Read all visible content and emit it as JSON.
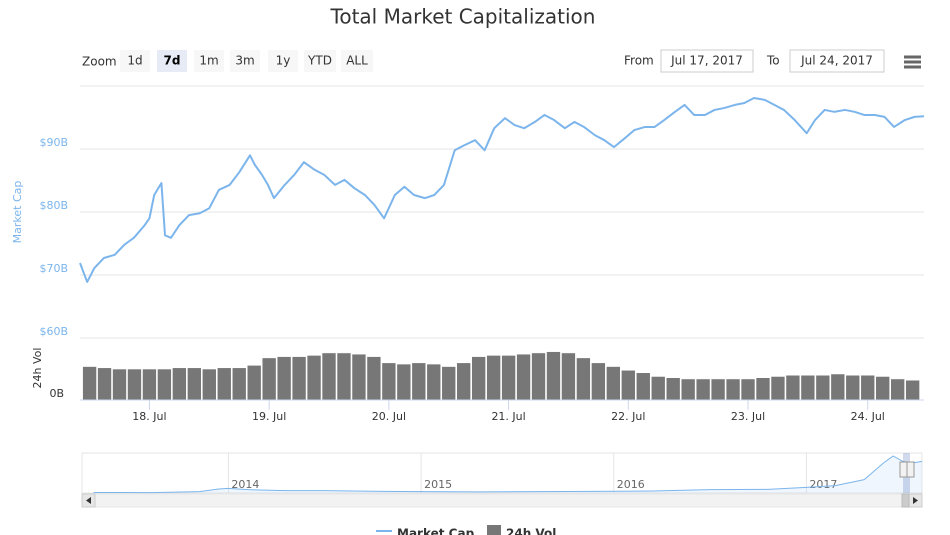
{
  "chart_data": {
    "type": "line",
    "title": "Total Market Capitalization",
    "ylabel": "Market Cap",
    "y2label": "24h Vol",
    "range_selector": {
      "zoom_label": "Zoom",
      "buttons": [
        "1d",
        "7d",
        "1m",
        "3m",
        "1y",
        "YTD",
        "ALL"
      ],
      "selected": 1,
      "from_label": "From",
      "from_value": "Jul 17, 2017",
      "to_label": "To",
      "to_value": "Jul 24, 2017"
    },
    "xlim": [
      17.42,
      24.47
    ],
    "xticks": [
      {
        "value": 18,
        "label": "18. Jul"
      },
      {
        "value": 19,
        "label": "19. Jul"
      },
      {
        "value": 20,
        "label": "20. Jul"
      },
      {
        "value": 21,
        "label": "21. Jul"
      },
      {
        "value": 22,
        "label": "22. Jul"
      },
      {
        "value": 23,
        "label": "23. Jul"
      },
      {
        "value": 24,
        "label": "24. Jul"
      }
    ],
    "ylim": [
      60,
      100
    ],
    "yticks": [
      {
        "value": 60,
        "label": "$60B"
      },
      {
        "value": 70,
        "label": "$70B"
      },
      {
        "value": 80,
        "label": "$80B"
      },
      {
        "value": 90,
        "label": "$90B"
      }
    ],
    "y2lim": [
      0,
      5
    ],
    "y2ticks": [
      {
        "value": 0,
        "label": "0B"
      }
    ],
    "grid": true,
    "series": [
      {
        "name": "Market Cap",
        "color": "#7cb5ec",
        "axis": "y",
        "x": [
          17.42,
          17.48,
          17.54,
          17.62,
          17.71,
          17.79,
          17.87,
          17.96,
          18.0,
          18.04,
          18.1,
          18.13,
          18.18,
          18.25,
          18.33,
          18.42,
          18.5,
          18.58,
          18.67,
          18.75,
          18.84,
          18.88,
          18.94,
          18.99,
          19.04,
          19.13,
          19.21,
          19.29,
          19.38,
          19.46,
          19.55,
          19.63,
          19.71,
          19.8,
          19.88,
          19.96,
          20.05,
          20.13,
          20.21,
          20.3,
          20.38,
          20.46,
          20.55,
          20.63,
          20.72,
          20.8,
          20.88,
          20.97,
          21.05,
          21.13,
          21.22,
          21.3,
          21.38,
          21.47,
          21.55,
          21.63,
          21.72,
          21.8,
          21.88,
          21.97,
          22.05,
          22.14,
          22.22,
          22.3,
          22.39,
          22.47,
          22.55,
          22.64,
          22.72,
          22.8,
          22.89,
          22.97,
          23.05,
          23.14,
          23.22,
          23.3,
          23.39,
          23.49,
          23.56,
          23.64,
          23.72,
          23.81,
          23.89,
          23.97,
          24.06,
          24.14,
          24.22,
          24.31,
          24.39,
          24.47
        ],
        "values": [
          71.9,
          68.9,
          71.1,
          72.7,
          73.2,
          74.8,
          75.9,
          77.9,
          79.0,
          82.7,
          84.6,
          76.3,
          75.9,
          77.9,
          79.5,
          79.8,
          80.6,
          83.5,
          84.3,
          86.3,
          89.0,
          87.5,
          85.9,
          84.3,
          82.2,
          84.3,
          85.9,
          87.9,
          86.7,
          85.9,
          84.3,
          85.1,
          83.8,
          82.7,
          81.1,
          79.0,
          82.7,
          84.0,
          82.7,
          82.2,
          82.7,
          84.3,
          89.8,
          90.6,
          91.4,
          89.8,
          93.3,
          94.9,
          93.8,
          93.3,
          94.3,
          95.4,
          94.6,
          93.3,
          94.3,
          93.5,
          92.2,
          91.4,
          90.3,
          91.7,
          93.0,
          93.5,
          93.5,
          94.6,
          95.9,
          97.0,
          95.4,
          95.4,
          96.2,
          96.5,
          97.0,
          97.3,
          98.1,
          97.8,
          97.0,
          96.2,
          94.6,
          92.5,
          94.6,
          96.2,
          95.9,
          96.2,
          95.9,
          95.4,
          95.4,
          95.1,
          93.5,
          94.6,
          95.1,
          95.2
        ]
      },
      {
        "name": "24h Vol",
        "color": "#777777",
        "axis": "y2",
        "x": [
          17.5,
          17.625,
          17.75,
          17.875,
          18.0,
          18.125,
          18.25,
          18.375,
          18.5,
          18.625,
          18.75,
          18.875,
          19.0,
          19.125,
          19.25,
          19.375,
          19.5,
          19.625,
          19.75,
          19.875,
          20.0,
          20.125,
          20.25,
          20.375,
          20.5,
          20.625,
          20.75,
          20.875,
          21.0,
          21.125,
          21.25,
          21.375,
          21.5,
          21.625,
          21.75,
          21.875,
          22.0,
          22.125,
          22.25,
          22.375,
          22.5,
          22.625,
          22.75,
          22.875,
          23.0,
          23.125,
          23.25,
          23.375,
          23.5,
          23.625,
          23.75,
          23.875,
          24.0,
          24.125,
          24.25,
          24.375
        ],
        "values": [
          2.7,
          2.6,
          2.5,
          2.5,
          2.5,
          2.5,
          2.6,
          2.6,
          2.5,
          2.6,
          2.6,
          2.8,
          3.4,
          3.5,
          3.5,
          3.6,
          3.8,
          3.8,
          3.7,
          3.5,
          3.0,
          2.9,
          3.0,
          2.9,
          2.7,
          3.0,
          3.5,
          3.6,
          3.6,
          3.7,
          3.8,
          3.9,
          3.8,
          3.4,
          3.0,
          2.7,
          2.4,
          2.2,
          1.9,
          1.8,
          1.7,
          1.7,
          1.7,
          1.7,
          1.7,
          1.8,
          1.9,
          2.0,
          2.0,
          2.0,
          2.1,
          2.0,
          2.0,
          1.9,
          1.7,
          1.6
        ]
      }
    ],
    "navigator": {
      "xlim": [
        2013.24,
        2017.6
      ],
      "ylim": [
        0,
        120
      ],
      "xticks": [
        2014,
        2015,
        2016,
        2017
      ],
      "x": [
        2013.3,
        2013.6,
        2013.85,
        2013.95,
        2014.0,
        2014.1,
        2014.3,
        2014.5,
        2014.8,
        2015.0,
        2015.3,
        2015.6,
        2015.9,
        2016.2,
        2016.5,
        2016.8,
        2017.0,
        2017.15,
        2017.3,
        2017.4,
        2017.45,
        2017.5,
        2017.55,
        2017.6
      ],
      "values": [
        1.5,
        1.2,
        4,
        12,
        14,
        10,
        7,
        7,
        5,
        4,
        3.5,
        4,
        5,
        6,
        10,
        11,
        17,
        22,
        40,
        90,
        111,
        95,
        90,
        95
      ]
    }
  }
}
